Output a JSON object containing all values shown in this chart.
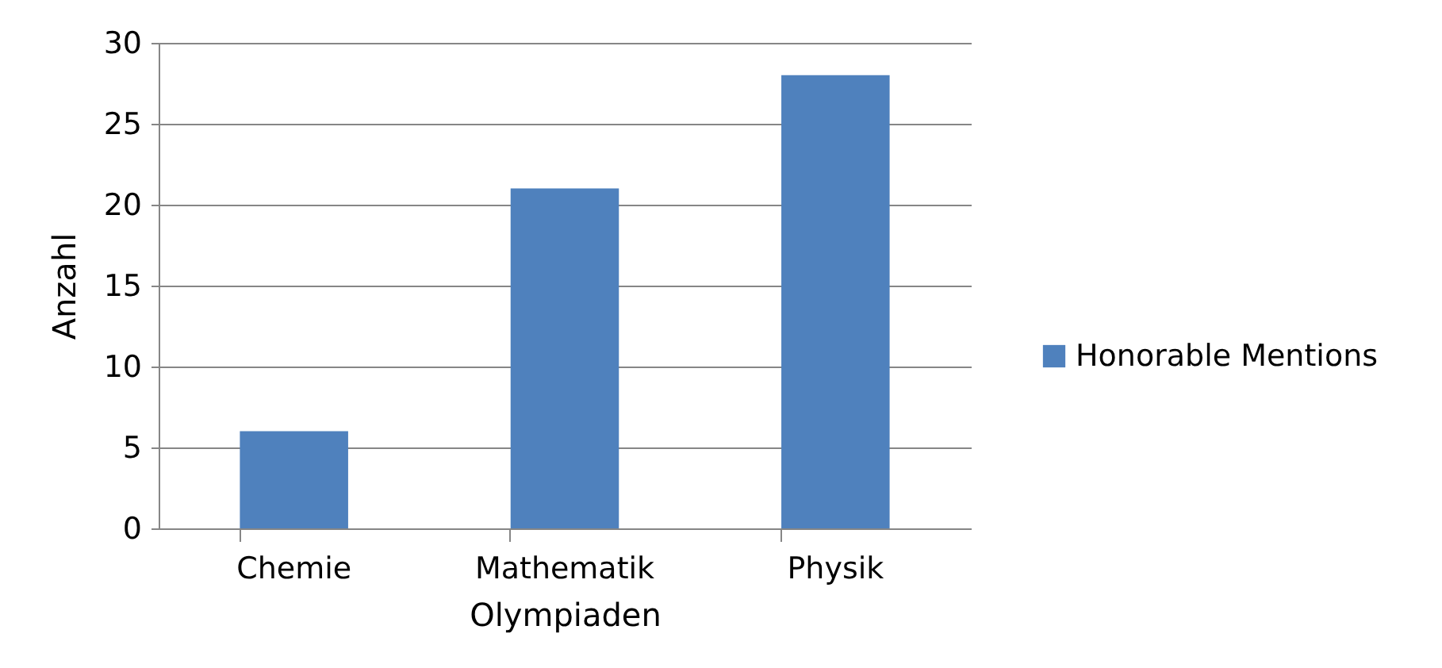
{
  "chart_data": {
    "type": "bar",
    "xlabel": "Olympiaden",
    "ylabel": "Anzahl",
    "categories": [
      "Chemie",
      "Mathematik",
      "Physik"
    ],
    "series": [
      {
        "name": "Honorable Mentions",
        "color": "#4f81bd",
        "values": [
          6,
          21,
          28
        ]
      }
    ],
    "ylim": [
      0,
      30
    ],
    "yticks": [
      0,
      5,
      10,
      15,
      20,
      25,
      30
    ],
    "grid": "y",
    "legend": "right"
  }
}
